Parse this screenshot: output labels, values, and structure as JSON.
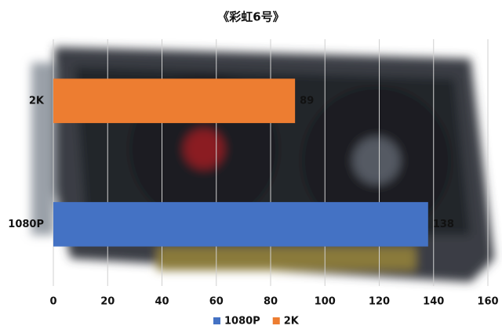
{
  "chart_data": {
    "type": "bar",
    "orientation": "horizontal",
    "title": "《彩虹6号》",
    "categories": [
      "1080P",
      "2K"
    ],
    "series": [
      {
        "name": "1080P",
        "color": "#4472c4",
        "values": [
          138,
          null
        ]
      },
      {
        "name": "2K",
        "color": "#ed7d31",
        "values": [
          null,
          89
        ]
      }
    ],
    "xlim": [
      0,
      160
    ],
    "xticks": [
      0,
      20,
      40,
      60,
      80,
      100,
      120,
      140,
      160
    ],
    "grid": true,
    "legend": "bottom"
  }
}
